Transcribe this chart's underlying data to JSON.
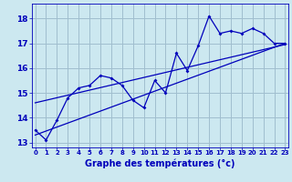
{
  "xlabel": "Graphe des températures (°c)",
  "background_color": "#cce8f0",
  "grid_color": "#a0bece",
  "line_color": "#0000bb",
  "x_values": [
    0,
    1,
    2,
    3,
    4,
    5,
    6,
    7,
    8,
    9,
    10,
    11,
    12,
    13,
    14,
    15,
    16,
    17,
    18,
    19,
    20,
    21,
    22,
    23
  ],
  "temp_values": [
    13.5,
    13.1,
    13.9,
    14.8,
    15.2,
    15.3,
    15.7,
    15.6,
    15.3,
    14.7,
    14.4,
    15.5,
    15.0,
    16.6,
    15.9,
    16.9,
    18.1,
    17.4,
    17.5,
    17.4,
    17.6,
    17.4,
    17.0,
    17.0
  ],
  "trend1_x": [
    0,
    23
  ],
  "trend1_y": [
    13.3,
    17.0
  ],
  "trend2_x": [
    0,
    23
  ],
  "trend2_y": [
    14.6,
    16.95
  ],
  "ylim": [
    12.8,
    18.6
  ],
  "yticks": [
    13,
    14,
    15,
    16,
    17,
    18
  ],
  "xlim": [
    -0.3,
    23.3
  ],
  "xticks": [
    0,
    1,
    2,
    3,
    4,
    5,
    6,
    7,
    8,
    9,
    10,
    11,
    12,
    13,
    14,
    15,
    16,
    17,
    18,
    19,
    20,
    21,
    22,
    23
  ]
}
